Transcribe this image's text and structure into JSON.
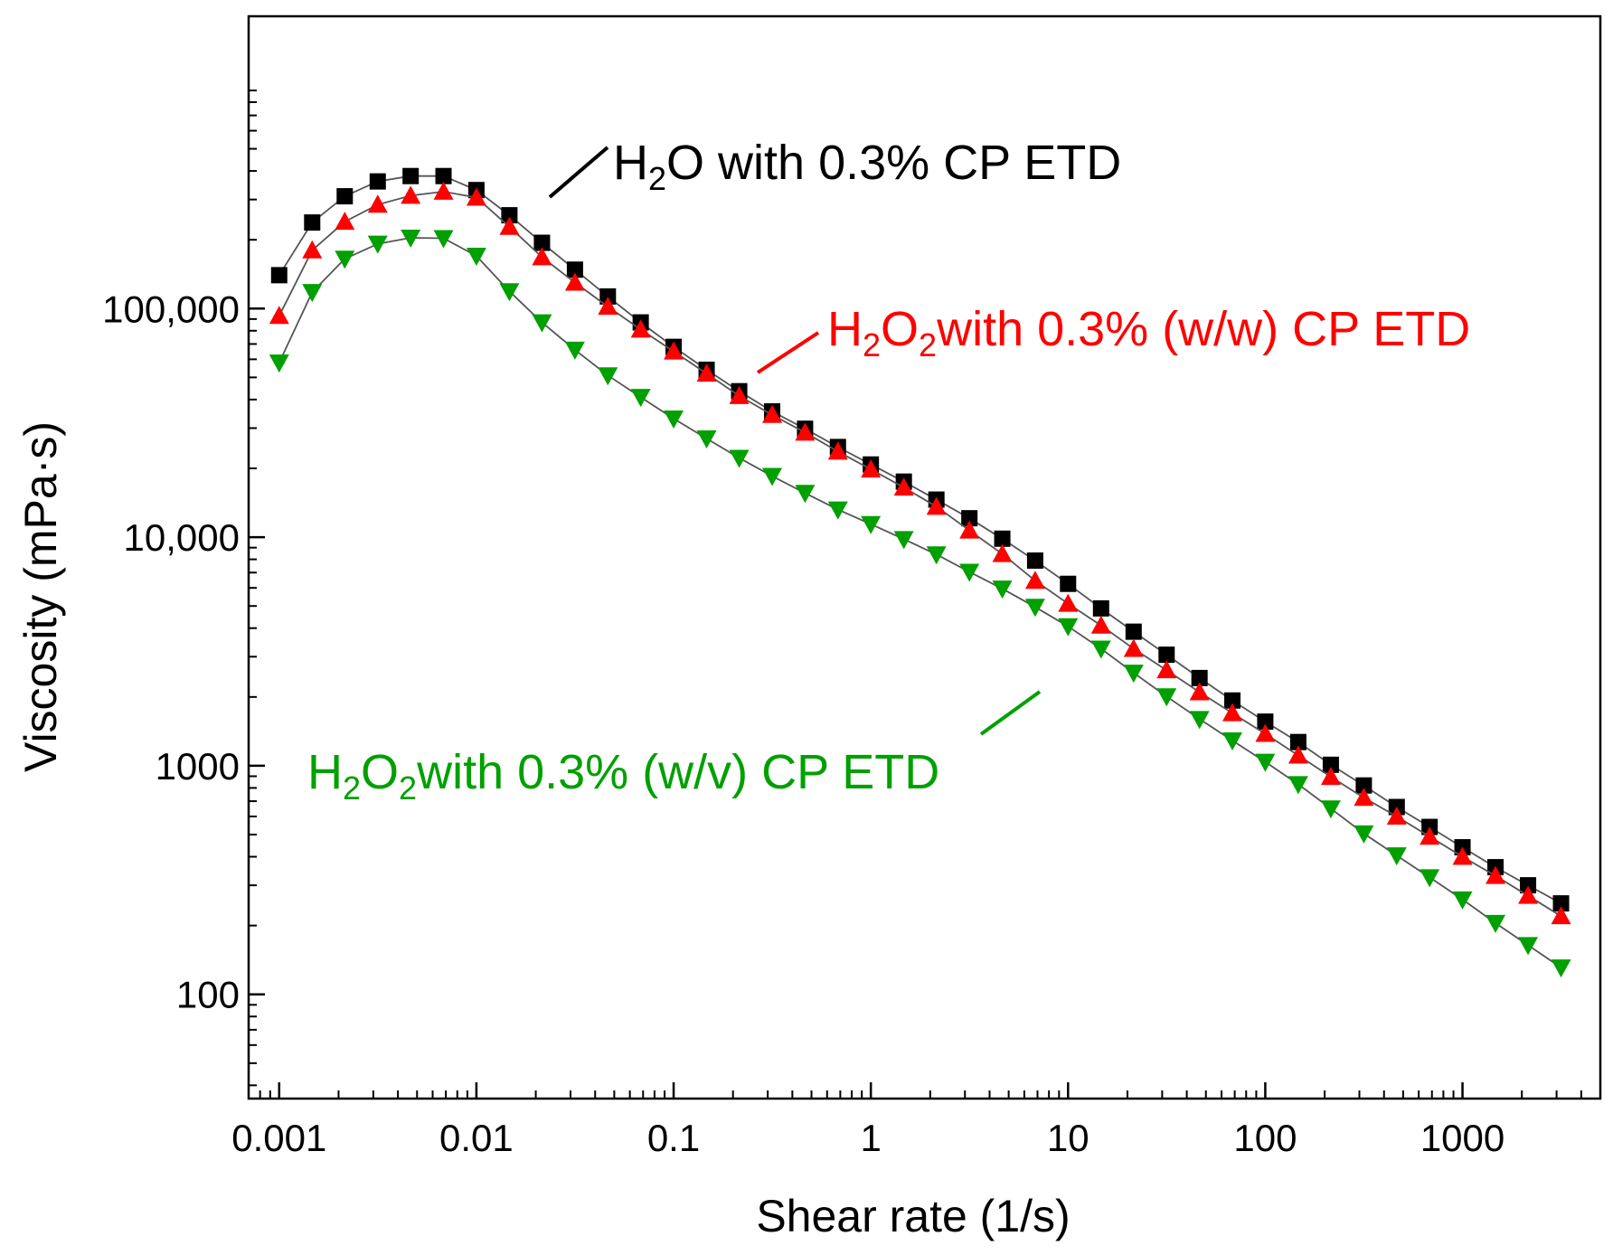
{
  "chart_data": {
    "type": "scatter",
    "title": "",
    "xlabel": "Shear rate (1/s)",
    "ylabel": "Viscosity (mPa·s)",
    "xscale": "log",
    "yscale": "log",
    "xlim": [
      0.0007,
      5000
    ],
    "ylim": [
      35,
      1900000
    ],
    "x_ticks": [
      {
        "value": 0.001,
        "label": "0.001"
      },
      {
        "value": 0.01,
        "label": "0.01"
      },
      {
        "value": 0.1,
        "label": "0.1"
      },
      {
        "value": 1,
        "label": "1"
      },
      {
        "value": 10,
        "label": "10"
      },
      {
        "value": 100,
        "label": "100"
      },
      {
        "value": 1000,
        "label": "1000"
      }
    ],
    "y_ticks": [
      {
        "value": 100,
        "label": "100"
      },
      {
        "value": 1000,
        "label": "1000"
      },
      {
        "value": 10000,
        "label": "10,000"
      },
      {
        "value": 100000,
        "label": "100,000"
      }
    ],
    "x": [
      0.001,
      0.00147,
      0.00215,
      0.00316,
      0.00464,
      0.00681,
      0.01,
      0.0147,
      0.0215,
      0.0316,
      0.0464,
      0.0681,
      0.1,
      0.147,
      0.215,
      0.316,
      0.464,
      0.681,
      1,
      1.47,
      2.15,
      3.16,
      4.64,
      6.81,
      10,
      14.7,
      21.5,
      31.6,
      46.4,
      68.1,
      100,
      147,
      215,
      316,
      464,
      681,
      1000,
      1470,
      2150,
      3160
    ],
    "series": [
      {
        "name": "H2O with 0.3% CP ETD",
        "color": "#000000",
        "marker": "square",
        "values": [
          140000,
          238000,
          310000,
          360000,
          380000,
          380000,
          330000,
          256000,
          194000,
          148000,
          113000,
          87000,
          68000,
          54000,
          43500,
          35500,
          29800,
          24800,
          20800,
          17500,
          14600,
          12100,
          9850,
          7900,
          6250,
          4880,
          3860,
          3060,
          2420,
          1930,
          1560,
          1270,
          1010,
          820,
          660,
          540,
          440,
          360,
          300,
          250
        ]
      },
      {
        "name": "H2O2 with 0.3% (w/w) CP ETD",
        "color": "#ff0000",
        "marker": "triangle-up",
        "values": [
          93000,
          180000,
          240000,
          285000,
          312000,
          325000,
          306000,
          228000,
          168000,
          130000,
          102000,
          81000,
          65000,
          52000,
          41500,
          34300,
          28700,
          23700,
          19800,
          16500,
          13600,
          10700,
          8450,
          6450,
          5120,
          4110,
          3250,
          2620,
          2100,
          1700,
          1380,
          1110,
          895,
          725,
          600,
          490,
          400,
          330,
          270,
          220
        ]
      },
      {
        "name": "H2O2 with 0.3% (w/v) CP ETD",
        "color": "#00a000",
        "marker": "triangle-down",
        "values": [
          58000,
          118000,
          165000,
          192000,
          204000,
          203000,
          170000,
          119000,
          87000,
          66000,
          51000,
          41000,
          33000,
          27000,
          22200,
          18500,
          15600,
          13200,
          11400,
          9800,
          8400,
          7050,
          5950,
          4950,
          4070,
          3250,
          2550,
          2010,
          1600,
          1290,
          1040,
          830,
          650,
          505,
          405,
          325,
          260,
          205,
          164,
          131
        ]
      }
    ],
    "annotations": [
      {
        "id": "black",
        "text": [
          "H",
          "2",
          "O with 0.3% CP ETD"
        ],
        "color": "#000000"
      },
      {
        "id": "red",
        "text": [
          "H",
          "2",
          "O",
          "2",
          "with 0.3% (w/w) CP ETD"
        ],
        "color": "#ff0000"
      },
      {
        "id": "green",
        "text": [
          "H",
          "2",
          "O",
          "2",
          "with 0.3% (w/v) CP ETD"
        ],
        "color": "#00a000"
      }
    ]
  }
}
